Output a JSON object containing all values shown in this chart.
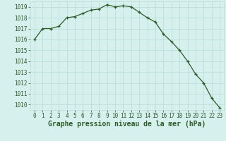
{
  "x": [
    0,
    1,
    2,
    3,
    4,
    5,
    6,
    7,
    8,
    9,
    10,
    11,
    12,
    13,
    14,
    15,
    16,
    17,
    18,
    19,
    20,
    21,
    22,
    23
  ],
  "y": [
    1016.0,
    1017.0,
    1017.0,
    1017.2,
    1018.0,
    1018.1,
    1018.4,
    1018.7,
    1018.8,
    1019.2,
    1019.0,
    1019.1,
    1019.0,
    1018.5,
    1018.0,
    1017.6,
    1016.5,
    1015.8,
    1015.0,
    1014.0,
    1012.8,
    1012.0,
    1010.6,
    1009.7
  ],
  "xlim": [
    -0.5,
    23.5
  ],
  "ylim": [
    1009.5,
    1019.5
  ],
  "yticks": [
    1010,
    1011,
    1012,
    1013,
    1014,
    1015,
    1016,
    1017,
    1018,
    1019
  ],
  "xticks": [
    0,
    1,
    2,
    3,
    4,
    5,
    6,
    7,
    8,
    9,
    10,
    11,
    12,
    13,
    14,
    15,
    16,
    17,
    18,
    19,
    20,
    21,
    22,
    23
  ],
  "line_color": "#2d5a27",
  "marker": "+",
  "bg_color": "#d6f0ee",
  "grid_color": "#b8dbd8",
  "xlabel": "Graphe pression niveau de la mer (hPa)",
  "xlabel_color": "#2d5a27",
  "tick_color": "#2d5a27",
  "fontsize_xlabel": 7,
  "fontsize_ticks": 5.5,
  "linewidth": 0.9,
  "markersize": 3.5,
  "markeredgewidth": 0.9
}
